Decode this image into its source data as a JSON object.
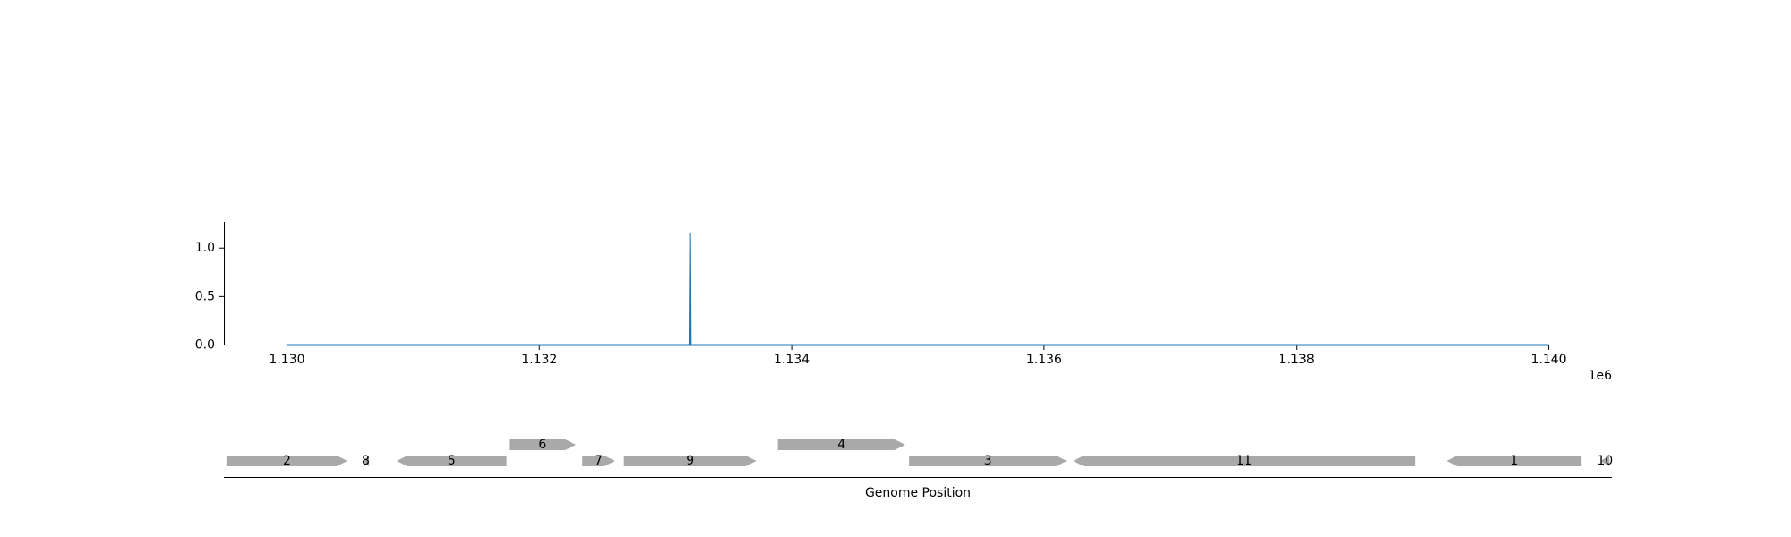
{
  "chart_data": [
    {
      "type": "line",
      "title": "",
      "xlabel": "",
      "ylabel": "",
      "x_offset_label": "1e6",
      "xlim": [
        1129500,
        1140500
      ],
      "ylim": [
        0,
        1.27
      ],
      "x_ticks": [
        {
          "value": 1130000,
          "label": "1.130"
        },
        {
          "value": 1132000,
          "label": "1.132"
        },
        {
          "value": 1134000,
          "label": "1.134"
        },
        {
          "value": 1136000,
          "label": "1.136"
        },
        {
          "value": 1138000,
          "label": "1.138"
        },
        {
          "value": 1140000,
          "label": "1.140"
        }
      ],
      "y_ticks": [
        {
          "value": 0.0,
          "label": "0.0"
        },
        {
          "value": 0.5,
          "label": "0.5"
        },
        {
          "value": 1.0,
          "label": "1.0"
        }
      ],
      "series": [
        {
          "color": "#1f77b4",
          "x": [
            1130000,
            1133190,
            1133195,
            1133200,
            1140000
          ],
          "y": [
            0,
            0,
            1.16,
            0,
            0
          ]
        }
      ],
      "grid": false
    },
    {
      "type": "gene-track",
      "xlabel": "Genome Position",
      "xlim": [
        1129500,
        1140500
      ],
      "genes": [
        {
          "label": "2",
          "start": 1129520,
          "end": 1130480,
          "strand": "+",
          "row": 0
        },
        {
          "label": "8",
          "start": 1130600,
          "end": 1130650,
          "strand": "-",
          "row": 0
        },
        {
          "label": "5",
          "start": 1130870,
          "end": 1131740,
          "strand": "-",
          "row": 0
        },
        {
          "label": "6",
          "start": 1131760,
          "end": 1132290,
          "strand": "+",
          "row": 1
        },
        {
          "label": "7",
          "start": 1132340,
          "end": 1132600,
          "strand": "+",
          "row": 0
        },
        {
          "label": "9",
          "start": 1132670,
          "end": 1133720,
          "strand": "+",
          "row": 0
        },
        {
          "label": "4",
          "start": 1133890,
          "end": 1134900,
          "strand": "+",
          "row": 1
        },
        {
          "label": "3",
          "start": 1134930,
          "end": 1136180,
          "strand": "+",
          "row": 0
        },
        {
          "label": "11",
          "start": 1136230,
          "end": 1138940,
          "strand": "-",
          "row": 0
        },
        {
          "label": "1",
          "start": 1139190,
          "end": 1140260,
          "strand": "-",
          "row": 0
        },
        {
          "label": "10",
          "start": 1140410,
          "end": 1140480,
          "strand": "-",
          "row": 0
        }
      ],
      "gene_color": "#a9a9a9"
    }
  ]
}
